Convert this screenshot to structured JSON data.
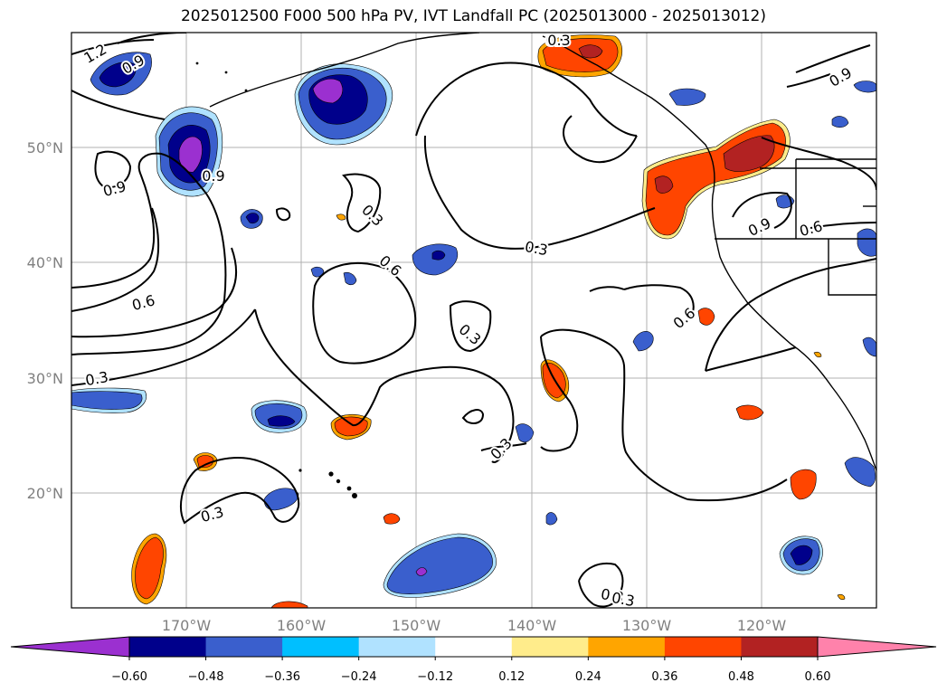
{
  "title": "2025012500 F000 500 hPa PV, IVT Landfall PC (2025013000 - 2025013012)",
  "map": {
    "lon_ticks": [
      "170°W",
      "160°W",
      "150°W",
      "140°W",
      "130°W",
      "120°W"
    ],
    "lat_ticks": [
      "50°N",
      "40°N",
      "30°N",
      "20°N"
    ],
    "contour_labels": [
      "1.2",
      "0.9",
      "0.9",
      "0.9",
      "0.3",
      "0.6",
      "0.3",
      "0.3",
      "0.6",
      "0.3",
      "0.3",
      "0.3",
      "0.6",
      "0.9",
      "0.6",
      "0.3",
      "0.3",
      "0.6",
      "0.9",
      "0.3"
    ]
  },
  "colorbar": {
    "tick_labels": [
      "−0.60",
      "−0.48",
      "−0.36",
      "−0.24",
      "−0.12",
      "0.12",
      "0.24",
      "0.36",
      "0.48",
      "0.60"
    ],
    "colors": [
      "#9b30d0",
      "#00008b",
      "#3a5fcd",
      "#00bfff",
      "#b0e2ff",
      "#ffffff",
      "#ffec8b",
      "#ffa500",
      "#ff4500",
      "#b22222",
      "#ff82ab"
    ]
  },
  "colors": {
    "frame": "#000000",
    "grid": "#b0b0b0",
    "tick_text": "#808080"
  }
}
